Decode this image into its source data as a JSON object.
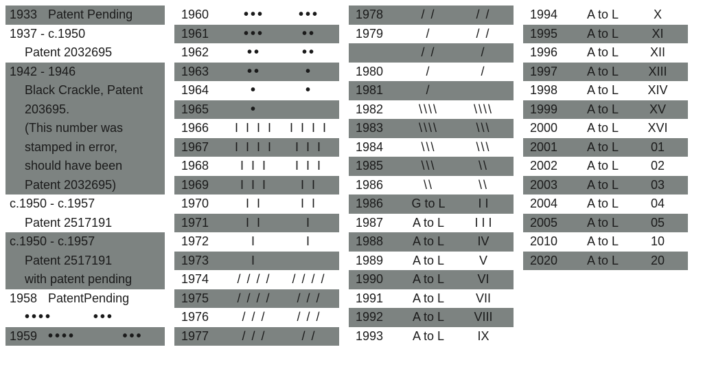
{
  "col1": [
    {
      "shaded": true,
      "cells": [
        "1933",
        "Patent Pending"
      ]
    },
    {
      "shaded": false,
      "cells": [
        "1937 - c.1950"
      ]
    },
    {
      "shaded": false,
      "indent": true,
      "cells": [
        "Patent 2032695"
      ]
    },
    {
      "shaded": true,
      "cells": [
        "1942 - 1946"
      ]
    },
    {
      "shaded": true,
      "indent": true,
      "cells": [
        "Black Crackle, Patent"
      ]
    },
    {
      "shaded": true,
      "indent": true,
      "cells": [
        "203695."
      ]
    },
    {
      "shaded": true,
      "indent": true,
      "cells": [
        "(This number was"
      ]
    },
    {
      "shaded": true,
      "indent": true,
      "cells": [
        "stamped in error,"
      ]
    },
    {
      "shaded": true,
      "indent": true,
      "cells": [
        "should have been"
      ]
    },
    {
      "shaded": true,
      "indent": true,
      "cells": [
        "Patent 2032695)"
      ]
    },
    {
      "shaded": false,
      "cells": [
        "c.1950 - c.1957"
      ]
    },
    {
      "shaded": false,
      "indent": true,
      "cells": [
        "Patent 2517191"
      ]
    },
    {
      "shaded": true,
      "cells": [
        "c.1950 - c.1957"
      ]
    },
    {
      "shaded": true,
      "indent": true,
      "cells": [
        "Patent 2517191"
      ]
    },
    {
      "shaded": true,
      "indent": true,
      "cells": [
        "with patent pending"
      ]
    },
    {
      "shaded": false,
      "cells": [
        "1958",
        "PatentPending"
      ]
    },
    {
      "shaded": false,
      "indent": true,
      "klass": "dots",
      "cells": [
        "••••       •••"
      ]
    },
    {
      "shaded": true,
      "klass": "dots",
      "cells": [
        "1959",
        "••••        •••"
      ]
    }
  ],
  "col2": [
    {
      "shaded": false,
      "a": "1960",
      "b": "•••",
      "c": "•••",
      "klass": "dots"
    },
    {
      "shaded": true,
      "a": "1961",
      "b": "•••",
      "c": "••",
      "klass": "dots"
    },
    {
      "shaded": false,
      "a": "1962",
      "b": "••",
      "c": "••",
      "klass": "dots"
    },
    {
      "shaded": true,
      "a": "1963",
      "b": "••",
      "c": "•",
      "klass": "dots"
    },
    {
      "shaded": false,
      "a": "1964",
      "b": "•",
      "c": "•",
      "klass": "dots"
    },
    {
      "shaded": true,
      "a": "1965",
      "b": "•",
      "c": "",
      "klass": "dots"
    },
    {
      "shaded": false,
      "a": "1966",
      "b": "I I I I",
      "c": "I I I I",
      "klass": "ticks"
    },
    {
      "shaded": true,
      "a": "1967",
      "b": "I I I I",
      "c": "I I I",
      "klass": "ticks"
    },
    {
      "shaded": false,
      "a": "1968",
      "b": "I I I",
      "c": "I I I",
      "klass": "ticks"
    },
    {
      "shaded": true,
      "a": "1969",
      "b": "I I I",
      "c": "I I",
      "klass": "ticks"
    },
    {
      "shaded": false,
      "a": "1970",
      "b": "I I",
      "c": "I I",
      "klass": "ticks"
    },
    {
      "shaded": true,
      "a": "1971",
      "b": "I I",
      "c": "I",
      "klass": "ticks"
    },
    {
      "shaded": false,
      "a": "1972",
      "b": "I",
      "c": "I",
      "klass": "ticks"
    },
    {
      "shaded": true,
      "a": "1973",
      "b": "I",
      "c": "",
      "klass": "ticks"
    },
    {
      "shaded": false,
      "a": "1974",
      "b": "/ / / /",
      "c": "/ / / /",
      "klass": "slashes"
    },
    {
      "shaded": true,
      "a": "1975",
      "b": "/ / / /",
      "c": "/ / /",
      "klass": "slashes"
    },
    {
      "shaded": false,
      "a": "1976",
      "b": "/ / /",
      "c": "/ / /",
      "klass": "slashes"
    },
    {
      "shaded": true,
      "a": "1977",
      "b": "/ / /",
      "c": "/ /",
      "klass": "slashes"
    }
  ],
  "col3": [
    {
      "shaded": true,
      "a": "1978",
      "b": "/ /",
      "c": "/ /",
      "klass": "slashes"
    },
    {
      "shaded": false,
      "a": "1979",
      "b": "/",
      "c": "/ /",
      "klass": "slashes"
    },
    {
      "shaded": true,
      "a": "",
      "b": "/ /",
      "c": "/",
      "klass": "slashes"
    },
    {
      "shaded": false,
      "a": "1980",
      "b": "/",
      "c": "/",
      "klass": "slashes"
    },
    {
      "shaded": true,
      "a": "1981",
      "b": "/",
      "c": "",
      "klass": "slashes"
    },
    {
      "shaded": false,
      "a": "1982",
      "b": "\\\\\\\\",
      "c": "\\\\\\\\",
      "klass": "slashes"
    },
    {
      "shaded": true,
      "a": "1983",
      "b": "\\\\\\\\",
      "c": "\\\\\\",
      "klass": "slashes"
    },
    {
      "shaded": false,
      "a": "1984",
      "b": "\\\\\\",
      "c": "\\\\\\",
      "klass": "slashes"
    },
    {
      "shaded": true,
      "a": "1985",
      "b": "\\\\\\",
      "c": "\\\\",
      "klass": "slashes"
    },
    {
      "shaded": false,
      "a": "1986",
      "b": "\\\\",
      "c": "\\\\",
      "klass": "slashes"
    },
    {
      "shaded": true,
      "a": "1986",
      "b": "G to L",
      "c": "I I",
      "klass": ""
    },
    {
      "shaded": false,
      "a": "1987",
      "b": "A to L",
      "c": "I I I",
      "klass": ""
    },
    {
      "shaded": true,
      "a": "1988",
      "b": "A to L",
      "c": "IV",
      "klass": ""
    },
    {
      "shaded": false,
      "a": "1989",
      "b": "A to L",
      "c": "V",
      "klass": ""
    },
    {
      "shaded": true,
      "a": "1990",
      "b": "A to L",
      "c": "VI",
      "klass": ""
    },
    {
      "shaded": false,
      "a": "1991",
      "b": "A to L",
      "c": "VII",
      "klass": ""
    },
    {
      "shaded": true,
      "a": "1992",
      "b": "A to L",
      "c": "VIII",
      "klass": ""
    },
    {
      "shaded": false,
      "a": "1993",
      "b": "A to L",
      "c": "IX",
      "klass": ""
    }
  ],
  "col4": [
    {
      "shaded": false,
      "a": "1994",
      "b": "A to L",
      "c": "X"
    },
    {
      "shaded": true,
      "a": "1995",
      "b": "A to L",
      "c": "XI"
    },
    {
      "shaded": false,
      "a": "1996",
      "b": "A to L",
      "c": "XII"
    },
    {
      "shaded": true,
      "a": "1997",
      "b": "A to L",
      "c": "XIII"
    },
    {
      "shaded": false,
      "a": "1998",
      "b": "A to L",
      "c": "XIV"
    },
    {
      "shaded": true,
      "a": "1999",
      "b": "A to L",
      "c": "XV"
    },
    {
      "shaded": false,
      "a": "2000",
      "b": "A to L",
      "c": "XVI"
    },
    {
      "shaded": true,
      "a": "2001",
      "b": "A to L",
      "c": "01"
    },
    {
      "shaded": false,
      "a": "2002",
      "b": "A to L",
      "c": "02"
    },
    {
      "shaded": true,
      "a": "2003",
      "b": "A to L",
      "c": "03"
    },
    {
      "shaded": false,
      "a": "2004",
      "b": "A to L",
      "c": "04"
    },
    {
      "shaded": true,
      "a": "2005",
      "b": "A to L",
      "c": "05"
    },
    {
      "shaded": false,
      "a": "2010",
      "b": "A to L",
      "c": "10"
    },
    {
      "shaded": true,
      "a": "2020",
      "b": "A to L",
      "c": "20"
    }
  ]
}
